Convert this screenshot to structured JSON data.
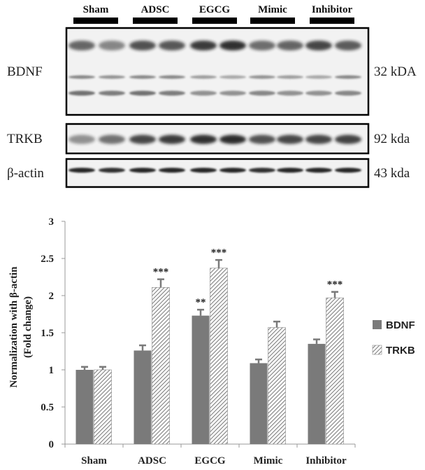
{
  "blot": {
    "groups": [
      "Sham",
      "ADSC",
      "EGCG",
      "Mimic",
      "Inhibitor"
    ],
    "panels": [
      {
        "name": "BDNF",
        "size": "32 kDA"
      },
      {
        "name": "TRKB",
        "size": "92 kda"
      },
      {
        "name": "β-actin",
        "size": "43 kda"
      }
    ]
  },
  "chart_data": {
    "type": "bar",
    "categories": [
      "Sham",
      "ADSC",
      "EGCG",
      "Mimic",
      "Inhibitor"
    ],
    "series": [
      {
        "name": "BDNF",
        "values": [
          1.0,
          1.26,
          1.73,
          1.09,
          1.35
        ],
        "errors": [
          0.04,
          0.07,
          0.08,
          0.05,
          0.06
        ],
        "significance": [
          "",
          "",
          "**",
          "",
          ""
        ],
        "color": "#7a7a7a",
        "pattern": "solid"
      },
      {
        "name": "TRKB",
        "values": [
          1.0,
          2.11,
          2.37,
          1.57,
          1.97
        ],
        "errors": [
          0.04,
          0.11,
          0.11,
          0.08,
          0.08
        ],
        "significance": [
          "",
          "***",
          "***",
          "",
          "***"
        ],
        "color": "#7a7a7a",
        "pattern": "hatched"
      }
    ],
    "ylabel": "Normalization with β-actin (Fold change)",
    "ylabel_lines": [
      "Normalization with β-actin",
      "(Fold change)"
    ],
    "ylim": [
      0,
      3
    ],
    "yticks": [
      "0",
      "0.5",
      "1",
      "1.5",
      "2",
      "2.5",
      "3"
    ],
    "legend_position": "right",
    "grid": false
  }
}
